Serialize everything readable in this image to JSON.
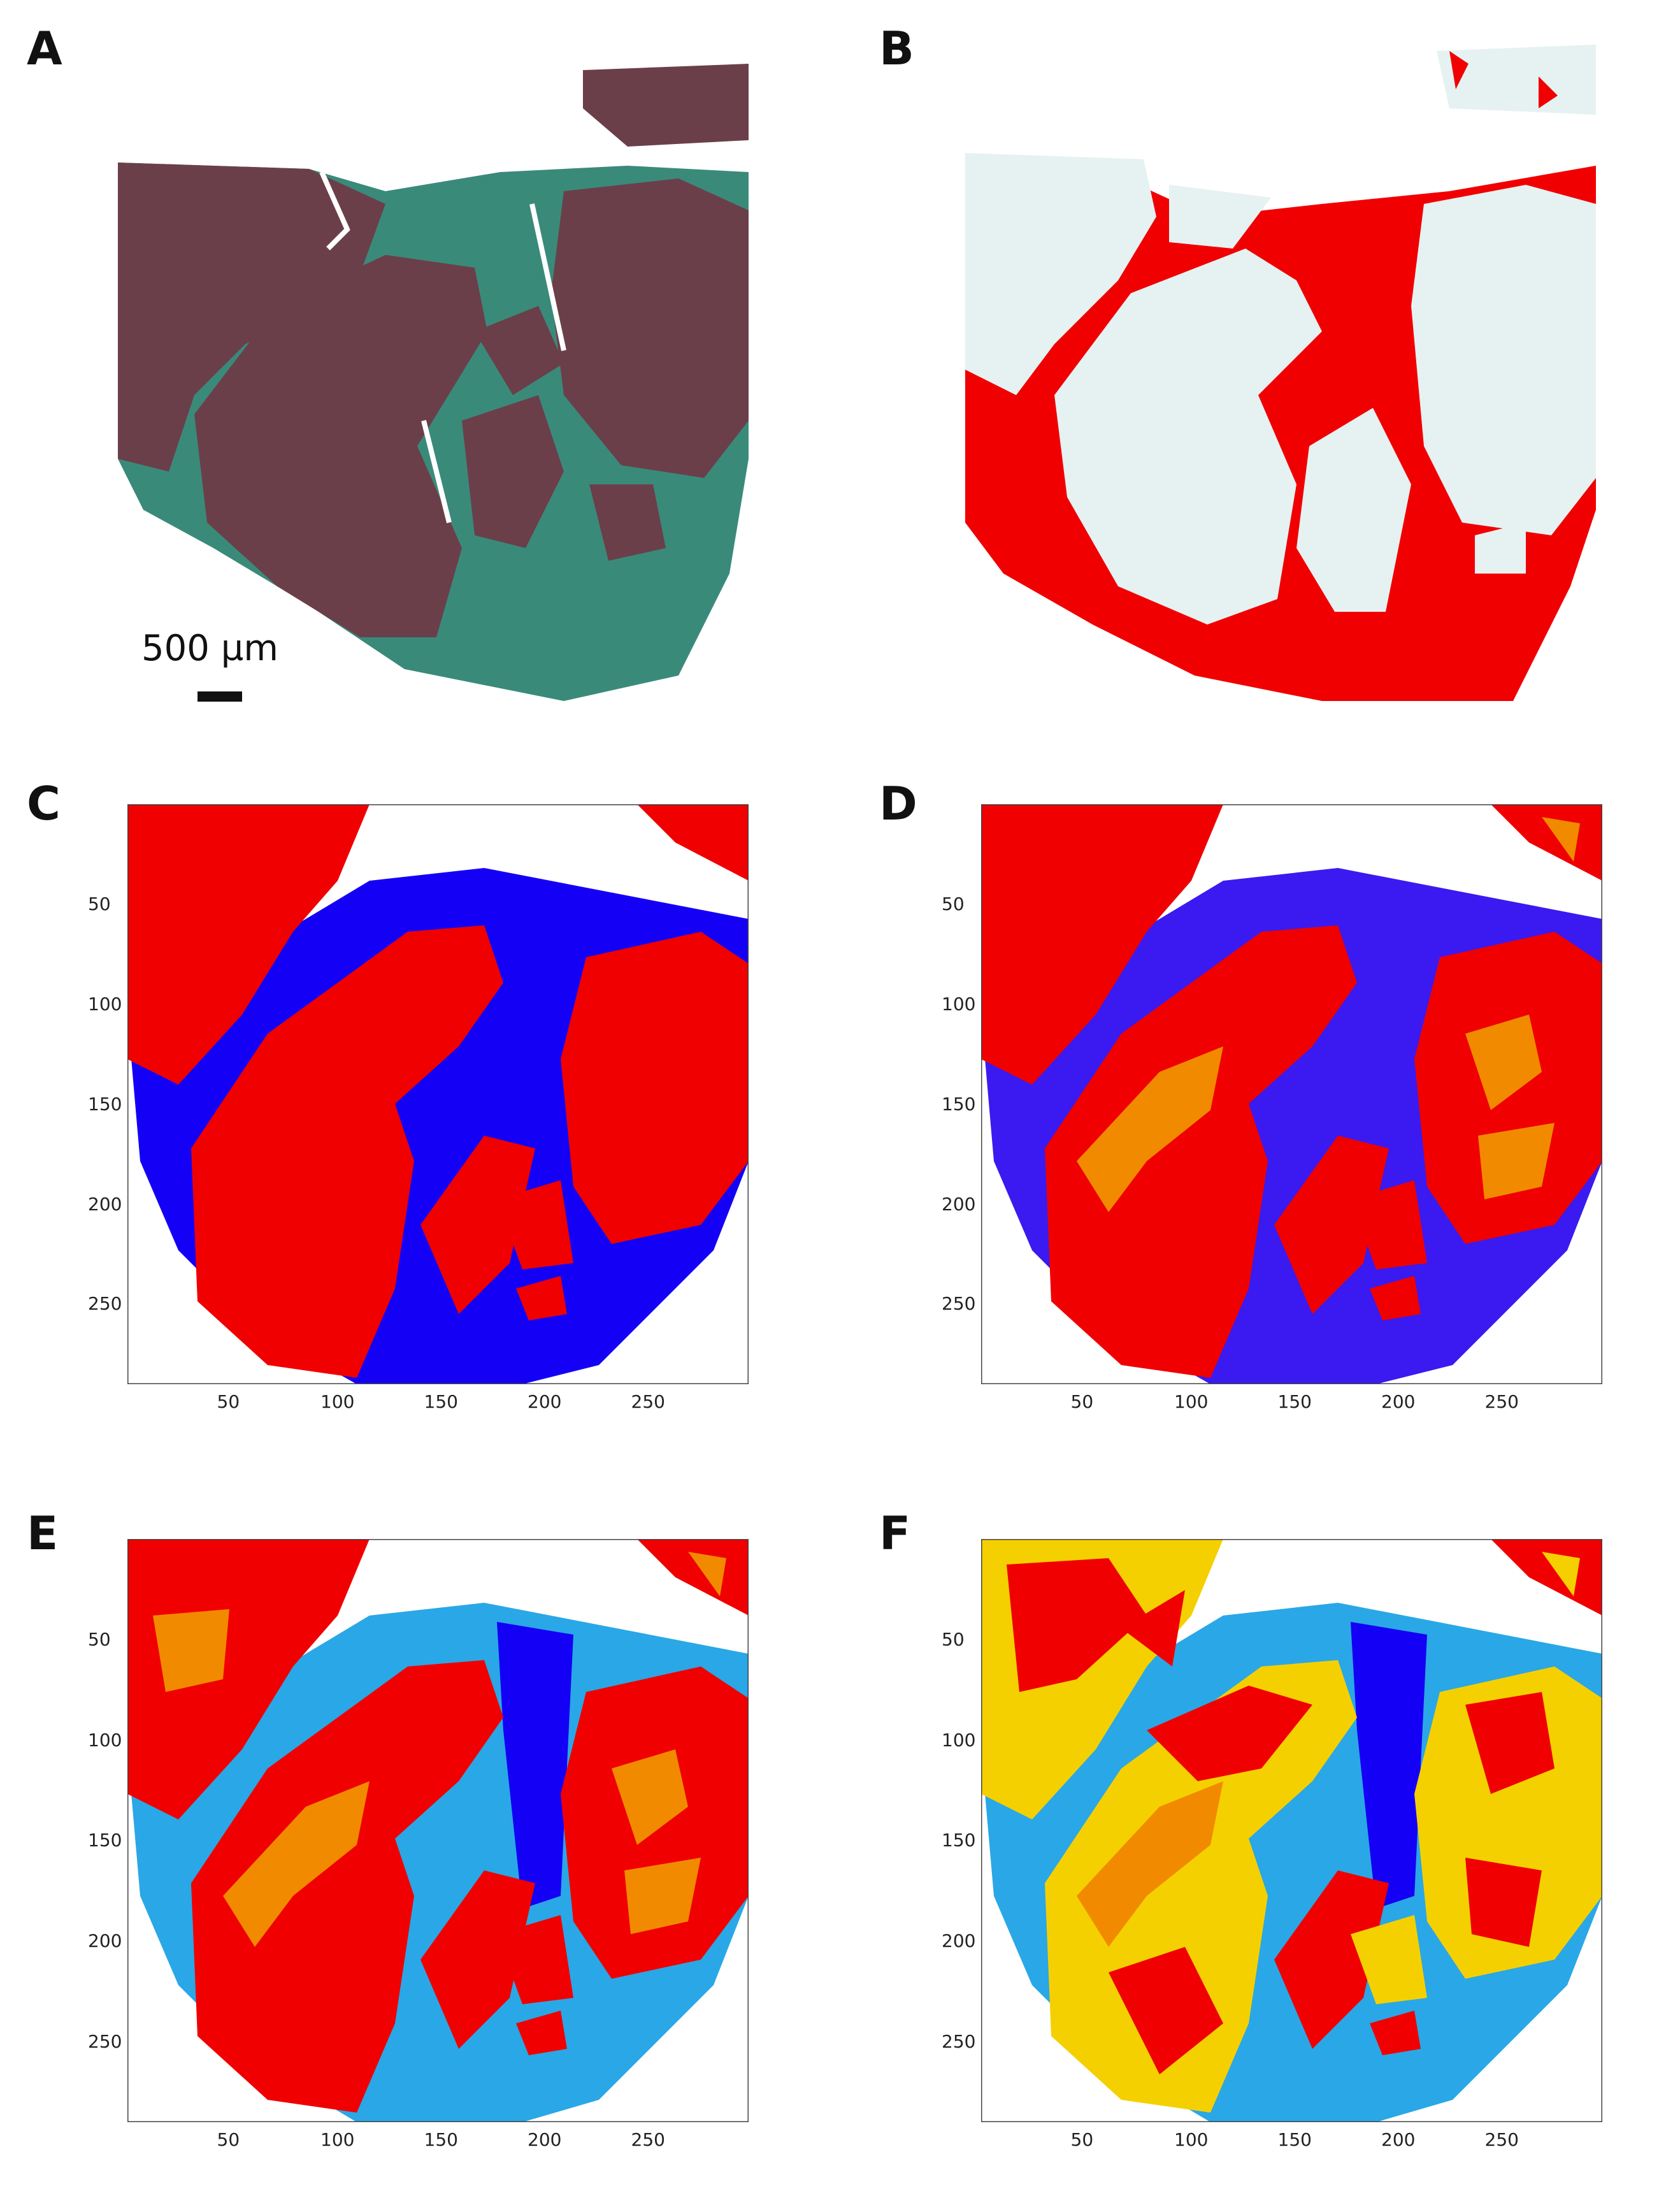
{
  "figure": {
    "panels": [
      {
        "id": "A",
        "label": "A",
        "kind": "histology-photo"
      },
      {
        "id": "B",
        "label": "B",
        "kind": "thresholded-image"
      },
      {
        "id": "C",
        "label": "C",
        "kind": "segmentation-map"
      },
      {
        "id": "D",
        "label": "D",
        "kind": "segmentation-map"
      },
      {
        "id": "E",
        "label": "E",
        "kind": "segmentation-map"
      },
      {
        "id": "F",
        "label": "F",
        "kind": "segmentation-map"
      }
    ],
    "scale_bar": {
      "label": "500 µm"
    },
    "axes": {
      "x_ticks": [
        "50",
        "100",
        "150",
        "200",
        "250"
      ],
      "y_ticks": [
        "50",
        "100",
        "150",
        "200",
        "250"
      ],
      "x_range": [
        0,
        300
      ],
      "y_range": [
        0,
        290
      ]
    },
    "colors": {
      "tissue_A": "#6b3f4a",
      "stroma_A": "#3a8a7a",
      "cell_B": "#e6f1f2",
      "fibrosis_red": "#f00000",
      "blue": "#1400f5",
      "purple_blue": "#3a1af0",
      "light_blue": "#2aa7e6",
      "orange": "#f28a00",
      "yellow": "#f5d000"
    }
  }
}
